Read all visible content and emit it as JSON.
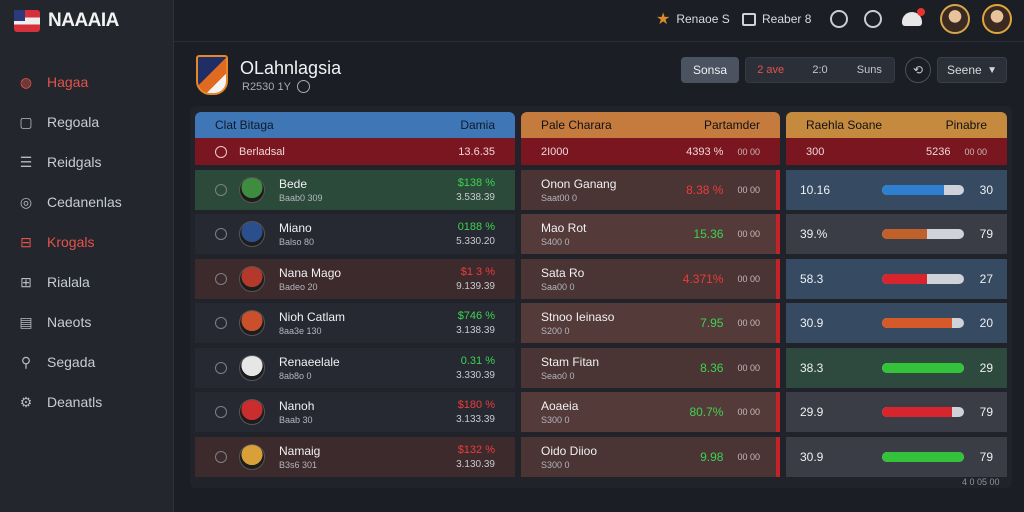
{
  "app": {
    "name": "NAAAIA"
  },
  "sidebar": {
    "items": [
      {
        "label": "Hagaa",
        "icon": "fire-icon",
        "active": true
      },
      {
        "label": "Regoala",
        "icon": "square-icon",
        "active": false
      },
      {
        "label": "Reidgals",
        "icon": "list-icon",
        "active": false
      },
      {
        "label": "Cedanenlas",
        "icon": "target-icon",
        "active": false
      },
      {
        "label": "Krogals",
        "icon": "briefcase-icon",
        "active": true
      },
      {
        "label": "Rialala",
        "icon": "gauge-icon",
        "active": false
      },
      {
        "label": "Naeots",
        "icon": "grid-icon",
        "active": false
      },
      {
        "label": "Segada",
        "icon": "runner-icon",
        "active": false
      },
      {
        "label": "Deanatls",
        "icon": "gear-icon",
        "active": false
      }
    ]
  },
  "topbar": {
    "star_label": "Renaoe S",
    "profile_label": "Reaber 8"
  },
  "page": {
    "title": "OLahnlagsia",
    "subtitle": "R2530 1Y"
  },
  "controls": {
    "primary": "Sonsa",
    "seg": [
      "2 ave",
      "2:0",
      "Suns"
    ],
    "select": "Seene"
  },
  "table_left": {
    "header_a": "Clat Bitaga",
    "header_b": "Damia",
    "highlight": {
      "name": "Berladsal",
      "value": "13.6.35"
    },
    "rows": [
      {
        "name": "Bede",
        "sub": "Baab0 309",
        "v1": "$138 %",
        "v2": "3.538.39",
        "trend": "green",
        "bg": "#2b4a3a"
      },
      {
        "name": "Miano",
        "sub": "Balso 80",
        "v1": "0188 %",
        "v2": "5.330.20",
        "trend": "green",
        "bg": "#262932"
      },
      {
        "name": "Nana Mago",
        "sub": "Badeo 20",
        "v1": "$1 3 %",
        "v2": "9.139.39",
        "trend": "red",
        "bg": "#3d2a2c"
      },
      {
        "name": "Nioh Catlam",
        "sub": "8aa3e 130",
        "v1": "$746 %",
        "v2": "3.138.39",
        "trend": "green",
        "bg": "#262932"
      },
      {
        "name": "Renaeelale",
        "sub": "8ab8o 0",
        "v1": "0.31 %",
        "v2": "3.330.39",
        "trend": "green",
        "bg": "#262932"
      },
      {
        "name": "Nanoh",
        "sub": "Baab 30",
        "v1": "$180 %",
        "v2": "3.133.39",
        "trend": "red",
        "bg": "#262932"
      },
      {
        "name": "Namaig",
        "sub": "B3s6 301",
        "v1": "$132 %",
        "v2": "3.130.39",
        "trend": "red",
        "bg": "#3d2a2c"
      }
    ]
  },
  "table_mid": {
    "header_a": "Pale Charara",
    "header_b": "Partamder",
    "highlight": {
      "name": "2I000",
      "value": "4393 %",
      "suffix": "00 00"
    },
    "rows": [
      {
        "name": "Onon Ganang",
        "sub": "Saat00 0",
        "pct": "8.38 %",
        "s": "00 00",
        "trend": "red"
      },
      {
        "name": "Mao Rot",
        "sub": "S400 0",
        "pct": "15.36",
        "s": "00 00",
        "trend": "green"
      },
      {
        "name": "Sata Ro",
        "sub": "Saa00 0",
        "pct": "4.371%",
        "s": "00 00",
        "trend": "red"
      },
      {
        "name": "Stnoo Ieinaso",
        "sub": "S200 0",
        "pct": "7.95",
        "s": "00 00",
        "trend": "green"
      },
      {
        "name": "Stam Fitan",
        "sub": "Seao0 0",
        "pct": "8.36",
        "s": "00 00",
        "trend": "green"
      },
      {
        "name": "Aoaeia",
        "sub": "S300 0",
        "pct": "80.7%",
        "s": "00 00",
        "trend": "green"
      },
      {
        "name": "Oido Diioo",
        "sub": "S300 0",
        "pct": "9.98",
        "s": "00 00",
        "trend": "green"
      }
    ]
  },
  "table_right": {
    "header_a": "Raehla Soane",
    "header_b": "Pinabre",
    "highlight": {
      "name": "300",
      "value": "5236",
      "suffix": "00 00"
    },
    "rows": [
      {
        "val": "10.16",
        "num": "30",
        "fill": 0.75,
        "color": "#2f7fd0",
        "bg": "#364a62"
      },
      {
        "val": "39.%",
        "num": "79",
        "fill": 0.55,
        "color": "#c0602a",
        "bg": "#3a3d45"
      },
      {
        "val": "58.3",
        "num": "27",
        "fill": 0.55,
        "color": "#d6252d",
        "bg": "#364a62"
      },
      {
        "val": "30.9",
        "num": "20",
        "fill": 0.85,
        "color": "#d6592a",
        "bg": "#364a62"
      },
      {
        "val": "38.3",
        "num": "29",
        "fill": 1.0,
        "color": "#33c23a",
        "bg": "#2e4a3e"
      },
      {
        "val": "29.9",
        "num": "79",
        "fill": 0.85,
        "color": "#d6252d",
        "bg": "#3a3d45"
      },
      {
        "val": "30.9",
        "num": "79",
        "fill": 1.0,
        "color": "#33c23a",
        "bg": "#3a3d45"
      }
    ]
  },
  "footer": {
    "corner": "4 0 05 00"
  }
}
